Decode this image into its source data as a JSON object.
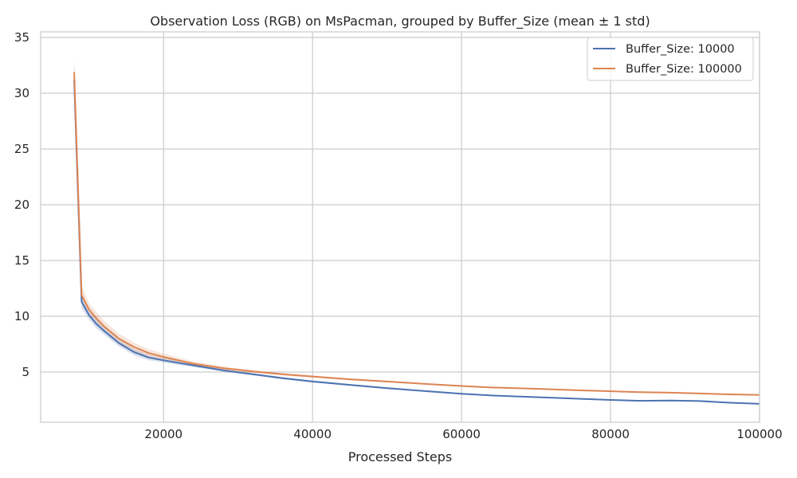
{
  "chart_data": {
    "type": "line",
    "title": "Observation Loss (RGB) on MsPacman, grouped by Buffer_Size (mean ± 1 std)",
    "xlabel": "Processed Steps",
    "ylabel": "",
    "xlim": [
      3500,
      100000
    ],
    "ylim": [
      0.5,
      35.5
    ],
    "xticks": [
      20000,
      40000,
      60000,
      80000,
      100000
    ],
    "yticks": [
      5,
      10,
      15,
      20,
      25,
      30,
      35
    ],
    "grid": true,
    "legend_position": "top-right",
    "x": [
      8000,
      9000,
      10000,
      11000,
      12000,
      14000,
      16000,
      18000,
      20000,
      24000,
      28000,
      32000,
      36000,
      40000,
      45000,
      50000,
      56000,
      60000,
      64000,
      70000,
      76000,
      80000,
      84000,
      88000,
      92000,
      96000,
      100000
    ],
    "series": [
      {
        "name": "Buffer_Size: 10000",
        "color": "#4c72b0",
        "values": [
          31.2,
          11.3,
          10.1,
          9.3,
          8.7,
          7.6,
          6.8,
          6.3,
          6.05,
          5.6,
          5.15,
          4.8,
          4.45,
          4.15,
          3.85,
          3.55,
          3.25,
          3.05,
          2.9,
          2.75,
          2.6,
          2.5,
          2.42,
          2.45,
          2.4,
          2.25,
          2.15
        ],
        "std": [
          1.5,
          0.6,
          0.4,
          0.4,
          0.35,
          0.3,
          0.3,
          0.25,
          0.2,
          0.15,
          0.12,
          0.1,
          0.1,
          0.1,
          0.08,
          0.08,
          0.06,
          0.06,
          0.05,
          0.05,
          0.05,
          0.05,
          0.05,
          0.05,
          0.05,
          0.05,
          0.05
        ]
      },
      {
        "name": "Buffer_Size: 100000",
        "color": "#dd8452",
        "values": [
          31.9,
          11.9,
          10.6,
          9.8,
          9.1,
          8.0,
          7.25,
          6.7,
          6.35,
          5.75,
          5.35,
          5.05,
          4.8,
          4.6,
          4.35,
          4.15,
          3.9,
          3.75,
          3.62,
          3.5,
          3.36,
          3.28,
          3.2,
          3.15,
          3.08,
          3.0,
          2.95
        ],
        "std": [
          1.5,
          0.8,
          0.6,
          0.55,
          0.5,
          0.45,
          0.4,
          0.35,
          0.3,
          0.2,
          0.15,
          0.12,
          0.1,
          0.1,
          0.08,
          0.08,
          0.06,
          0.06,
          0.05,
          0.05,
          0.05,
          0.05,
          0.05,
          0.05,
          0.05,
          0.05,
          0.05
        ]
      }
    ]
  }
}
